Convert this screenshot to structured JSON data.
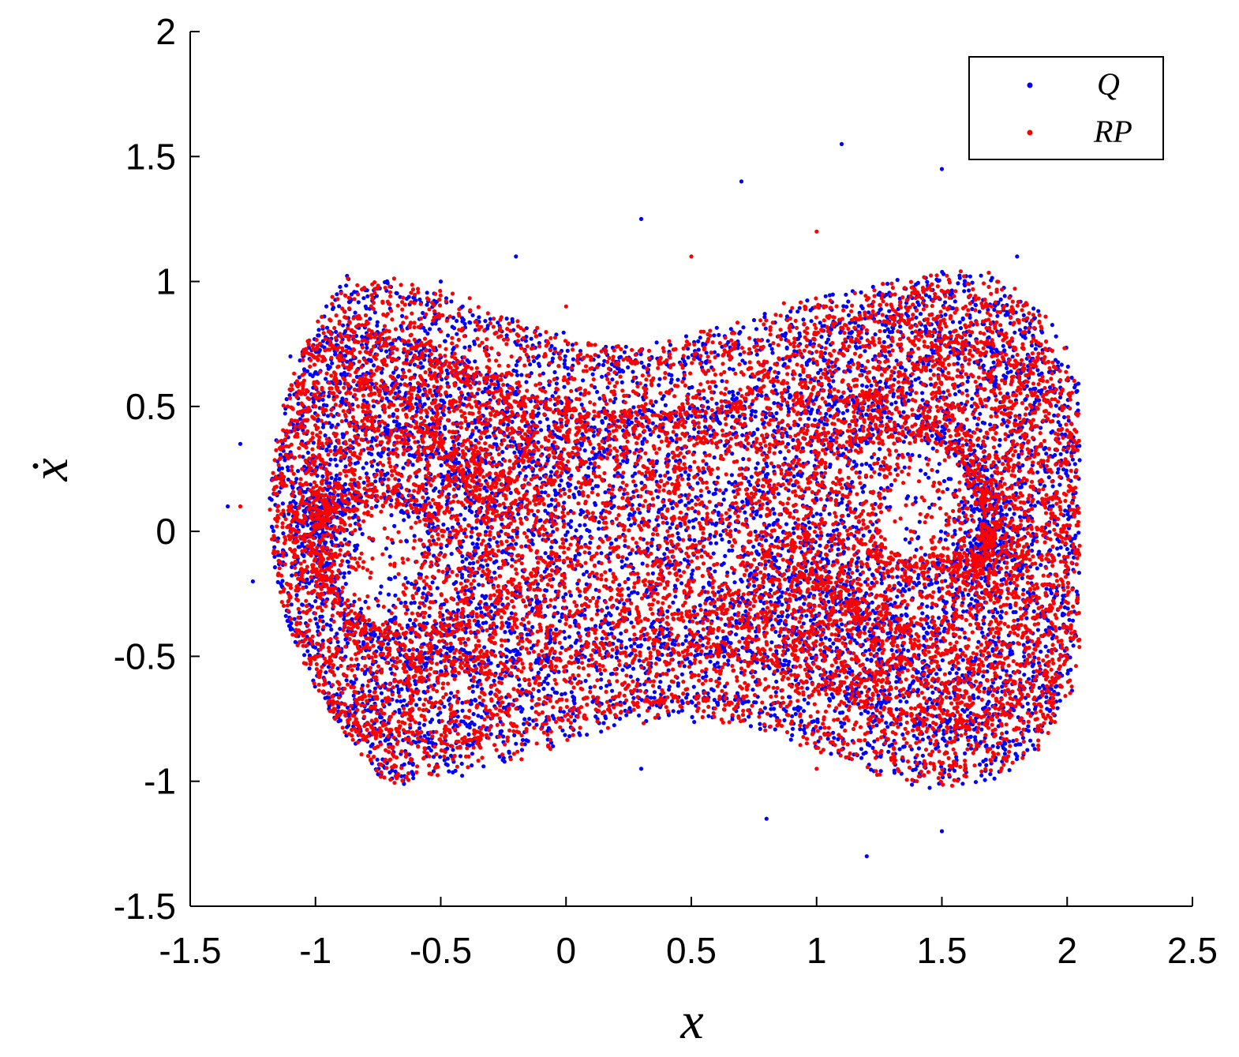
{
  "chart_data": {
    "type": "scatter",
    "title": "",
    "xlabel": "x",
    "ylabel": "ẋ",
    "xlim": [
      -1.5,
      2.5
    ],
    "ylim": [
      -1.5,
      2
    ],
    "xticks": [
      -1.5,
      -1,
      -0.5,
      0,
      0.5,
      1,
      1.5,
      2,
      2.5
    ],
    "xtick_labels": [
      "-1.5",
      "-1",
      "-0.5",
      "0",
      "0.5",
      "1",
      "1.5",
      "2",
      "2.5"
    ],
    "yticks": [
      -1.5,
      -1,
      -0.5,
      0,
      0.5,
      1,
      1.5,
      2
    ],
    "ytick_labels": [
      "-1.5",
      "-1",
      "-0.5",
      "0",
      "0.5",
      "1",
      "1.5",
      "2"
    ],
    "grid": false,
    "legend_position": "top-right",
    "series": [
      {
        "name": "Q",
        "color": "#0000ff",
        "marker": "dot",
        "description_points": [
          [
            -1.35,
            0.1
          ],
          [
            -1.3,
            0.35
          ],
          [
            -1.1,
            0.7
          ],
          [
            -0.8,
            0.9
          ],
          [
            -0.5,
            1.0
          ],
          [
            -0.2,
            1.1
          ],
          [
            0.3,
            1.25
          ],
          [
            0.7,
            1.4
          ],
          [
            1.1,
            1.55
          ],
          [
            1.5,
            1.45
          ],
          [
            1.8,
            1.1
          ],
          [
            1.97,
            0.6
          ],
          [
            2.04,
            0.1
          ],
          [
            2.0,
            -0.4
          ],
          [
            1.8,
            -0.9
          ],
          [
            1.5,
            -1.2
          ],
          [
            1.2,
            -1.3
          ],
          [
            0.8,
            -1.15
          ],
          [
            0.3,
            -0.95
          ],
          [
            -0.2,
            -0.85
          ],
          [
            -0.7,
            -0.55
          ],
          [
            -0.5,
            -0.3
          ],
          [
            -0.2,
            -0.05
          ],
          [
            -1.0,
            -0.35
          ],
          [
            -1.25,
            -0.2
          ]
        ]
      },
      {
        "name": "RP",
        "color": "#ff0000",
        "marker": "dot",
        "description_points": [
          [
            -1.3,
            0.1
          ],
          [
            -1.0,
            0.5
          ],
          [
            -0.5,
            0.8
          ],
          [
            0.0,
            0.9
          ],
          [
            0.5,
            1.1
          ],
          [
            1.0,
            1.2
          ],
          [
            1.3,
            0.9
          ],
          [
            1.7,
            0.7
          ],
          [
            1.9,
            0.2
          ],
          [
            1.85,
            -0.5
          ],
          [
            1.4,
            -1.0
          ],
          [
            1.0,
            -0.95
          ],
          [
            0.6,
            -0.6
          ],
          [
            0.3,
            -0.4
          ],
          [
            0.0,
            -0.6
          ],
          [
            0.8,
            0.3
          ],
          [
            1.0,
            0.4
          ],
          [
            1.5,
            -0.2
          ],
          [
            -0.8,
            0.1
          ],
          [
            -0.6,
            -0.2
          ]
        ]
      }
    ]
  }
}
